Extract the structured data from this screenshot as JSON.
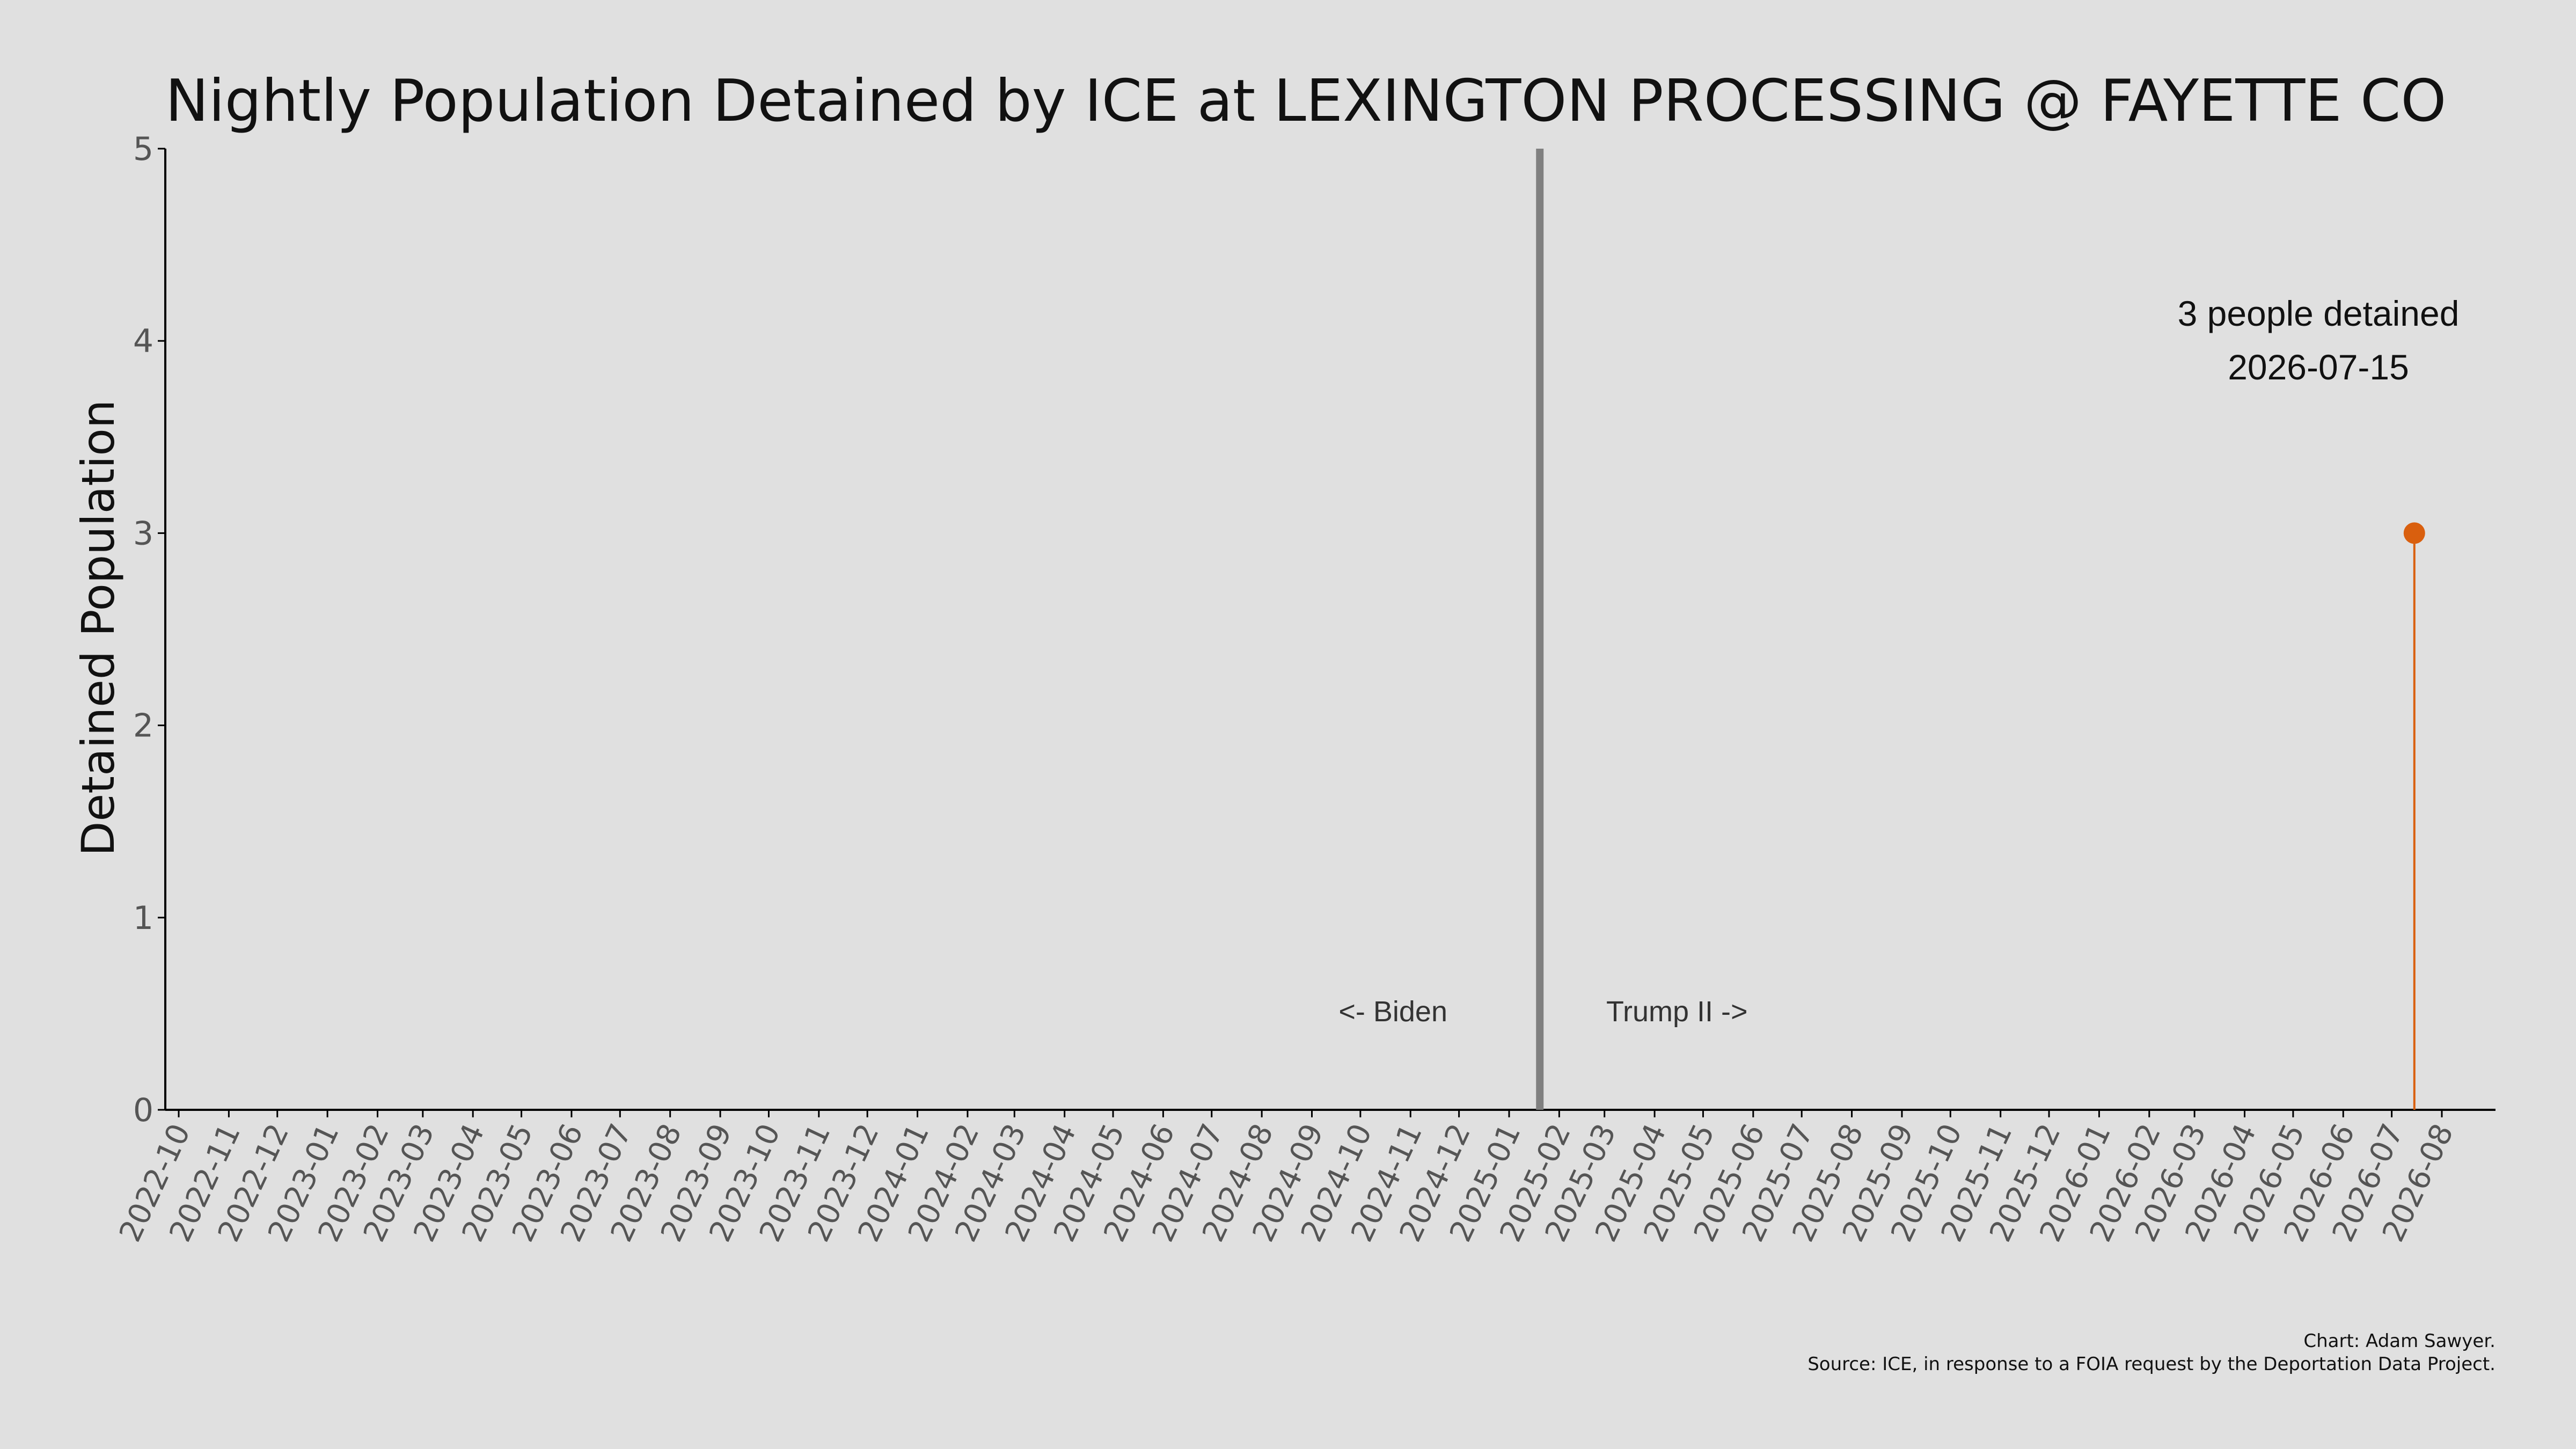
{
  "chart_data": {
    "type": "scatter",
    "title": "Nightly Population Detained by ICE at LEXINGTON PROCESSING @ FAYETTE CO",
    "xlabel": "",
    "ylabel": "Detained Population",
    "ylim": [
      0,
      5
    ],
    "yticks": [
      "0",
      "1",
      "2",
      "3",
      "4",
      "5"
    ],
    "xlim": [
      "2022-10",
      "2026-08"
    ],
    "xticks": [
      "2022-10",
      "2022-11",
      "2022-12",
      "2023-01",
      "2023-02",
      "2023-03",
      "2023-04",
      "2023-05",
      "2023-06",
      "2023-07",
      "2023-08",
      "2023-09",
      "2023-10",
      "2023-11",
      "2023-12",
      "2024-01",
      "2024-02",
      "2024-03",
      "2024-04",
      "2024-05",
      "2024-06",
      "2024-07",
      "2024-08",
      "2024-09",
      "2024-10",
      "2024-11",
      "2024-12",
      "2025-01",
      "2025-02",
      "2025-03",
      "2025-04",
      "2025-05",
      "2025-06",
      "2025-07",
      "2025-08",
      "2025-09",
      "2025-10",
      "2025-11",
      "2025-12",
      "2026-01",
      "2026-02",
      "2026-03",
      "2026-04",
      "2026-05",
      "2026-06",
      "2026-07",
      "2026-08"
    ],
    "grid": false,
    "series": [
      {
        "points": [
          {
            "x": "2026-07-15",
            "y": 3
          }
        ],
        "color": "#d95f0e"
      }
    ],
    "divider": {
      "x": "2025-01-20",
      "color": "#808080"
    },
    "era_labels": {
      "left": "<- Biden",
      "right": "Trump II ->"
    },
    "annotation": {
      "line1": "3 people detained",
      "line2": "2026-07-15"
    },
    "credits": {
      "line1": "Chart: Adam Sawyer.",
      "line2": "Source: ICE, in response to a FOIA request by the Deportation Data Project."
    },
    "colors": {
      "background": "#e0e0e0",
      "axis": "#000000",
      "point": "#d95f0e"
    }
  }
}
